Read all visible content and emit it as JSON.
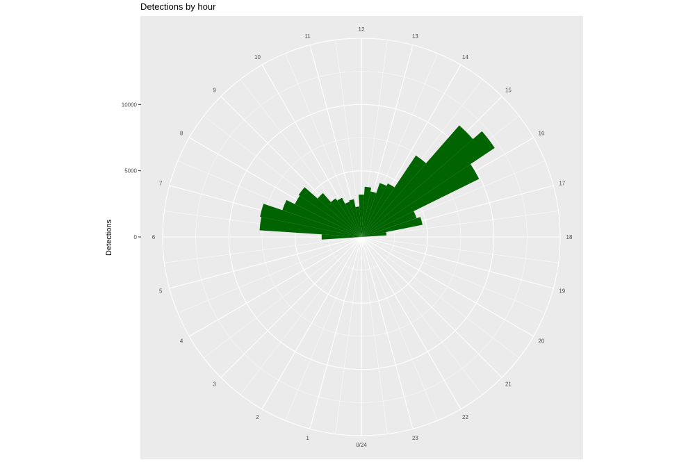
{
  "chart_data": {
    "type": "bar",
    "coord": "polar",
    "title": "Detections by hour",
    "xlabel": "",
    "ylabel": "Detections",
    "ylim": [
      0,
      15000
    ],
    "y_ticks": [
      0,
      5000,
      10000
    ],
    "y_tick_labels": [
      "0",
      "5000",
      "10000"
    ],
    "hour_labels": [
      "0/24",
      "1",
      "2",
      "3",
      "4",
      "5",
      "6",
      "7",
      "8",
      "9",
      "10",
      "11",
      "12",
      "13",
      "14",
      "15",
      "16",
      "17",
      "18",
      "19",
      "20",
      "21",
      "22",
      "23"
    ],
    "categories": [
      "0",
      "0.5",
      "1",
      "1.5",
      "2",
      "2.5",
      "3",
      "3.5",
      "4",
      "4.5",
      "5",
      "5.5",
      "6",
      "6.5",
      "7",
      "7.5",
      "8",
      "8.5",
      "9",
      "9.5",
      "10",
      "10.5",
      "11",
      "11.5",
      "12",
      "12.5",
      "13",
      "13.5",
      "14",
      "14.5",
      "15",
      "15.5",
      "16",
      "16.5",
      "17",
      "17.5",
      "18",
      "18.5",
      "19",
      "19.5",
      "20",
      "20.5",
      "21",
      "21.5",
      "22",
      "22.5",
      "23",
      "23.5"
    ],
    "values": [
      0,
      0,
      0,
      0,
      0,
      0,
      0,
      0,
      0,
      0,
      0,
      100,
      3000,
      7700,
      7800,
      6300,
      5600,
      5700,
      4400,
      3500,
      3300,
      2800,
      2900,
      2300,
      3200,
      3800,
      3500,
      4300,
      4500,
      7400,
      11200,
      12100,
      9900,
      4400,
      4700,
      1900,
      0,
      0,
      0,
      0,
      0,
      0,
      0,
      0,
      0,
      0,
      0,
      0
    ],
    "bar_color": "#006400",
    "panel_color": "#ebebeb",
    "grid_color": "#ffffff",
    "grid": true,
    "legend": "none"
  }
}
